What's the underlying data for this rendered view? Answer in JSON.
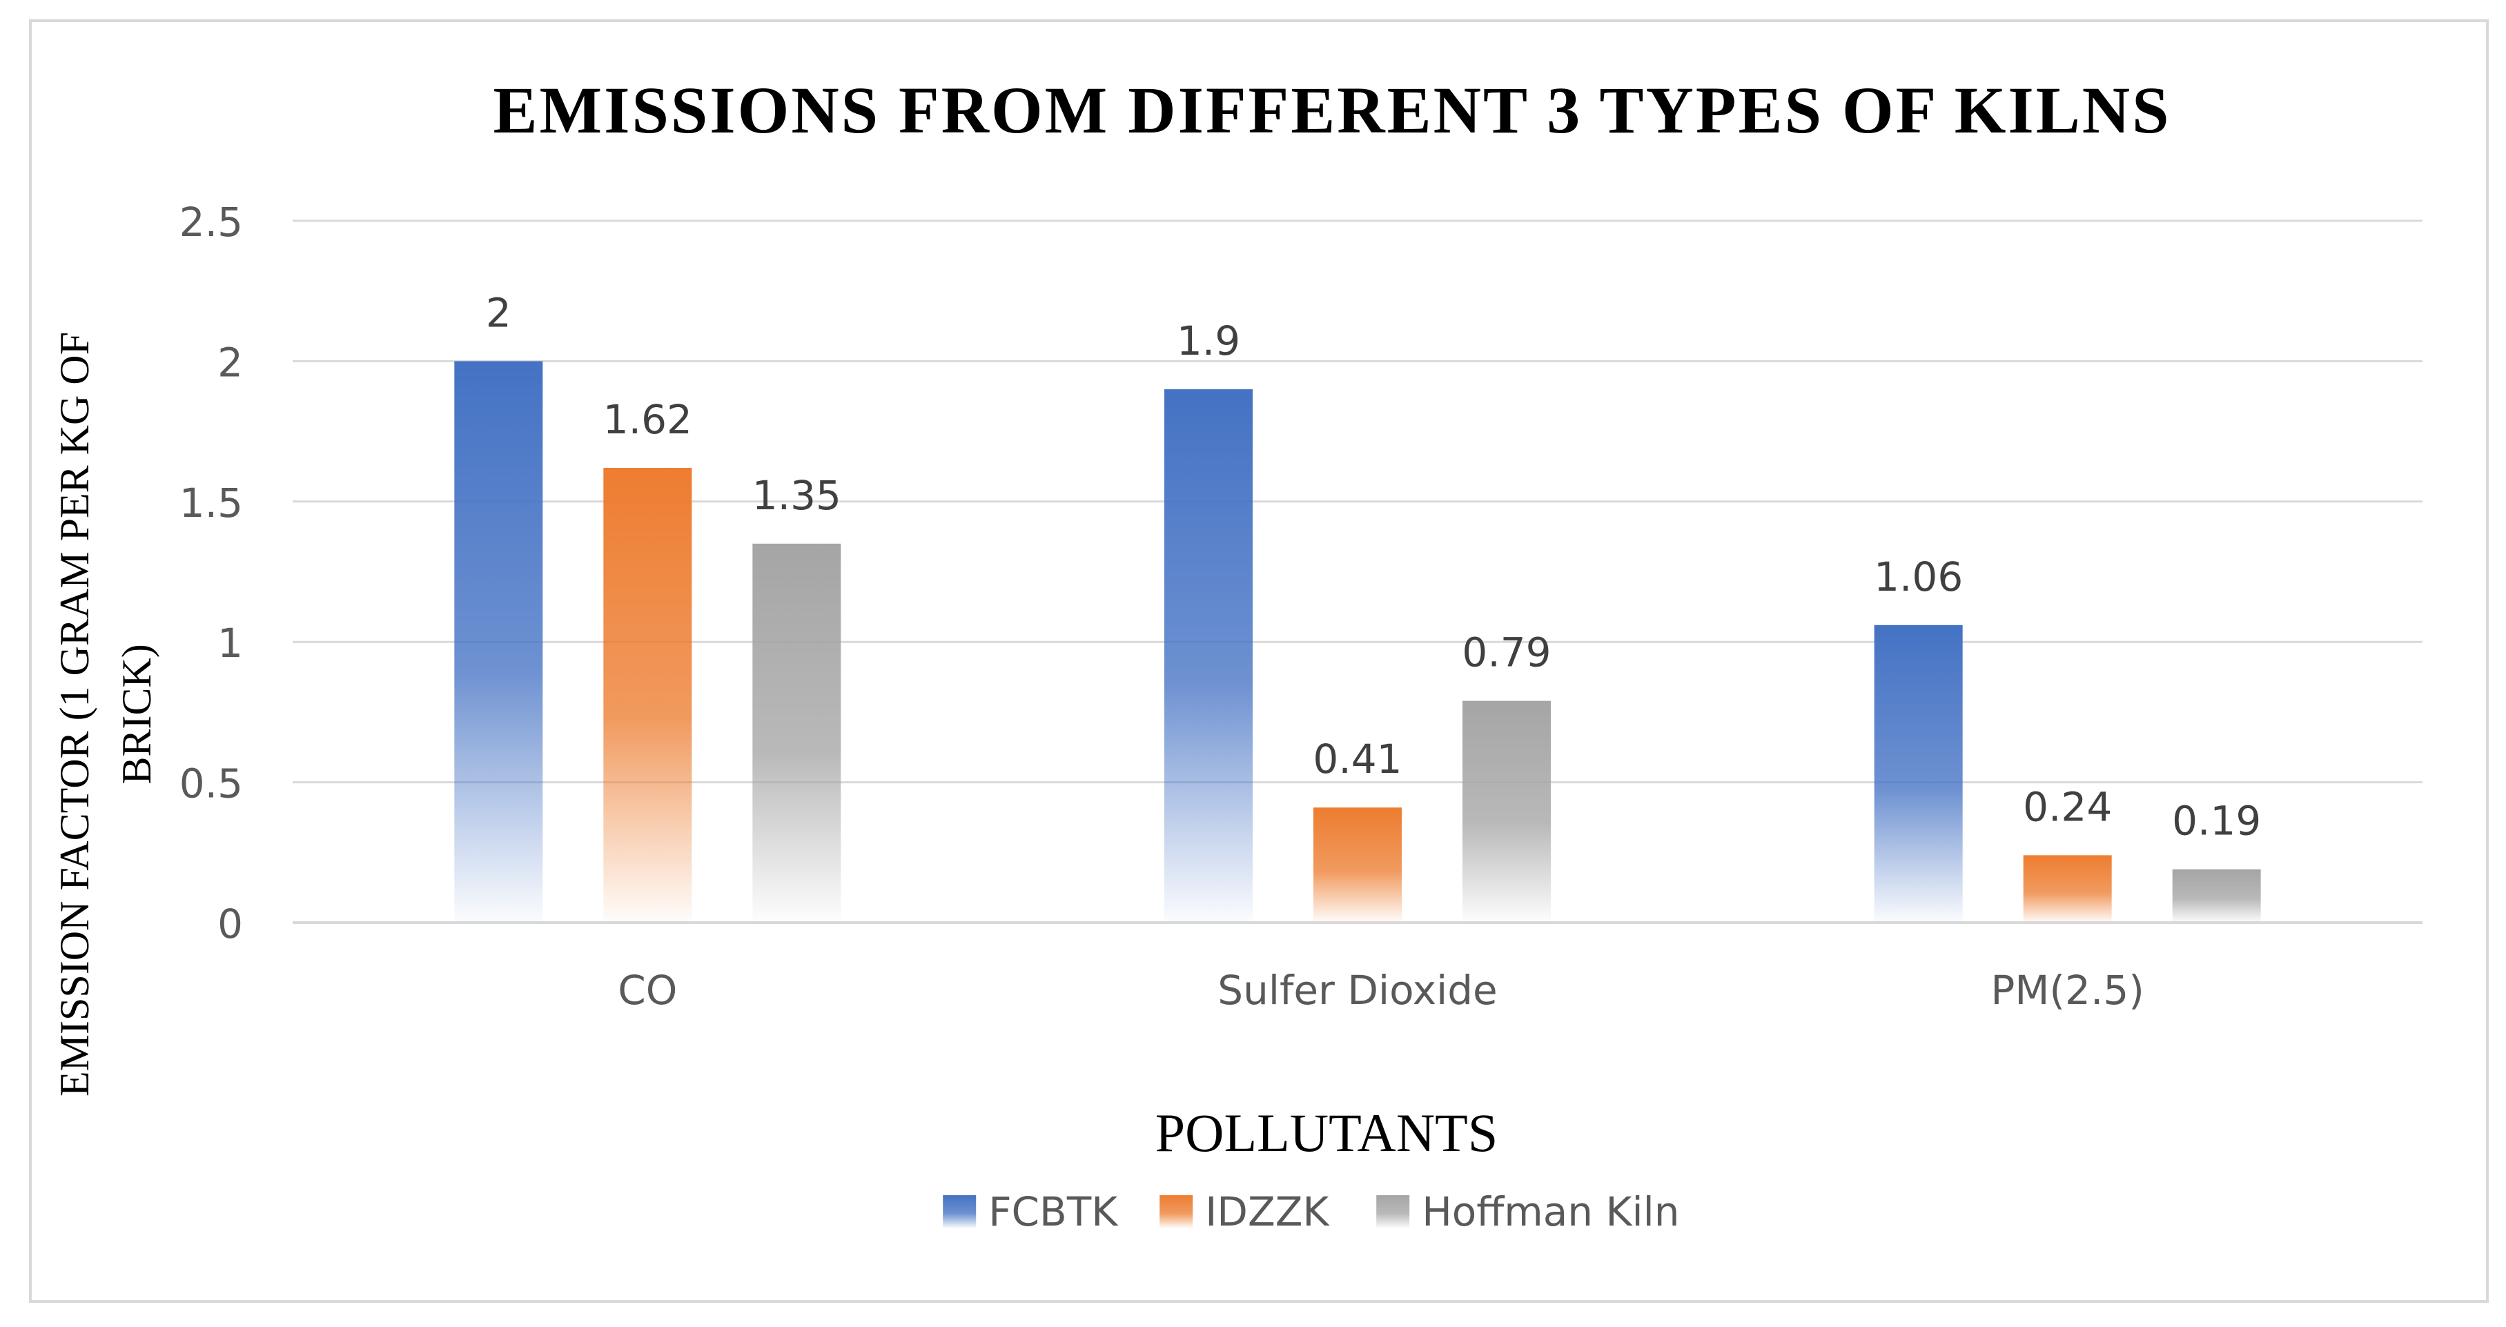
{
  "chart_data": {
    "type": "bar",
    "title": "EMISSIONS FROM DIFFERENT 3 TYPES OF KILNS",
    "xlabel": "POLLUTANTS",
    "ylabel": "EMISSION FACTOR (1 GRAM PER KG OF BRICK)",
    "ylabel_lines": [
      "EMISSION FACTOR (1 GRAM PER KG OF",
      "BRICK)"
    ],
    "categories": [
      "CO",
      "Sulfer Dioxide",
      "PM(2.5)"
    ],
    "ylim": [
      0,
      2.5
    ],
    "yticks": [
      "0",
      "0.5",
      "1",
      "1.5",
      "2",
      "2.5"
    ],
    "grid": true,
    "legend_position": "bottom",
    "series": [
      {
        "name": "FCBTK",
        "values": [
          2,
          1.9,
          1.06
        ],
        "labels": [
          "2",
          "1.9",
          "1.06"
        ],
        "color": "#4472C4"
      },
      {
        "name": "IDZZK",
        "values": [
          1.62,
          0.41,
          0.24
        ],
        "labels": [
          "1.62",
          "0.41",
          "0.24"
        ],
        "color": "#ED7D31"
      },
      {
        "name": "Hoffman Kiln",
        "values": [
          1.35,
          0.79,
          0.19
        ],
        "labels": [
          "1.35",
          "0.79",
          "0.19"
        ],
        "color": "#A5A5A5"
      }
    ]
  }
}
